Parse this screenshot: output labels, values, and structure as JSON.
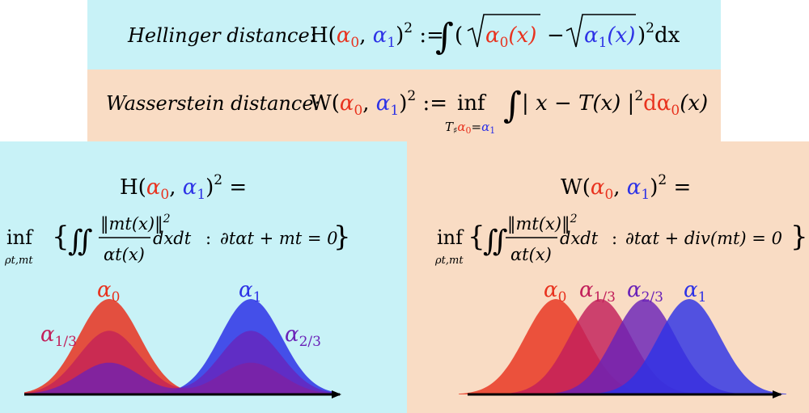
{
  "colors": {
    "alpha0": "#e8321e",
    "alpha1": "#2d32e6",
    "alpha13": "#c21f5a",
    "alpha23": "#6a22b8",
    "cyan_bg": "#c8f2f7",
    "orange_bg": "#f9dcc4"
  },
  "hellinger": {
    "name": "Hellinger distance:",
    "lhs": "H(",
    "alpha0": "α",
    "sub0": "0",
    "alpha1": "α",
    "sub1": "1",
    "close_sq": ")",
    "sq": "2",
    "assign": ":=",
    "integral": "∫",
    "open": "(",
    "sqrt_arg0": "(x)",
    "minus": "−",
    "sqrt_arg1": "(x)",
    "close": ")",
    "dx": "dx"
  },
  "wasserstein": {
    "name": "Wasserstein distance:",
    "lhs": "W(",
    "alpha0": "α",
    "sub0": "0",
    "alpha1": "α",
    "sub1": "1",
    "sq": "2",
    "assign": ":=",
    "inf": "inf",
    "inf_sub_T": "T",
    "inf_sub_sharp": "♯",
    "inf_sub_eq": "=",
    "integral": "∫",
    "body": "| x − T(x) |",
    "dalpha": "dα",
    "arg": "(x)"
  },
  "left_formula": {
    "lhs": "H(",
    "rhs_eq": "=",
    "inf": "inf",
    "inf_sub": "ρt,mt",
    "lbrace": "{",
    "iint": "∬",
    "numerator": "‖mt(x)‖",
    "num_sq": "2",
    "denominator": "αt(x)",
    "dxdt": "dxdt",
    "colon": ":",
    "constraint": "∂tαt + mt = 0",
    "rbrace": "}"
  },
  "right_formula": {
    "lhs": "W(",
    "rhs_eq": "=",
    "inf": "inf",
    "inf_sub": "ρt,mt",
    "lbrace": "{",
    "iint": "∬",
    "numerator": "‖mt(x)‖",
    "num_sq": "2",
    "denominator": "αt(x)",
    "dxdt": "dxdt",
    "colon": ":",
    "constraint": "∂tαt + div(mt) = 0",
    "rbrace": "}"
  },
  "left_plot": {
    "labels": [
      {
        "letter": "α",
        "sub": "0"
      },
      {
        "letter": "α",
        "sub": "1"
      },
      {
        "letter": "α",
        "sub": "1/3"
      },
      {
        "letter": "α",
        "sub": "2/3"
      }
    ],
    "bump_centers": [
      135,
      310
    ],
    "curves": [
      {
        "name": "alpha0-left",
        "weights": [
          1.0,
          0.0
        ]
      },
      {
        "name": "alpha13-left",
        "weights": [
          0.667,
          0.333
        ]
      },
      {
        "name": "alpha23-left",
        "weights": [
          0.333,
          0.667
        ]
      },
      {
        "name": "alpha1-left",
        "weights": [
          0.0,
          1.0
        ]
      }
    ]
  },
  "right_plot": {
    "labels": [
      {
        "letter": "α",
        "sub": "0"
      },
      {
        "letter": "α",
        "sub": "1/3"
      },
      {
        "letter": "α",
        "sub": "2/3"
      },
      {
        "letter": "α",
        "sub": "1"
      }
    ],
    "centers": [
      687,
      742,
      797,
      852
    ]
  }
}
